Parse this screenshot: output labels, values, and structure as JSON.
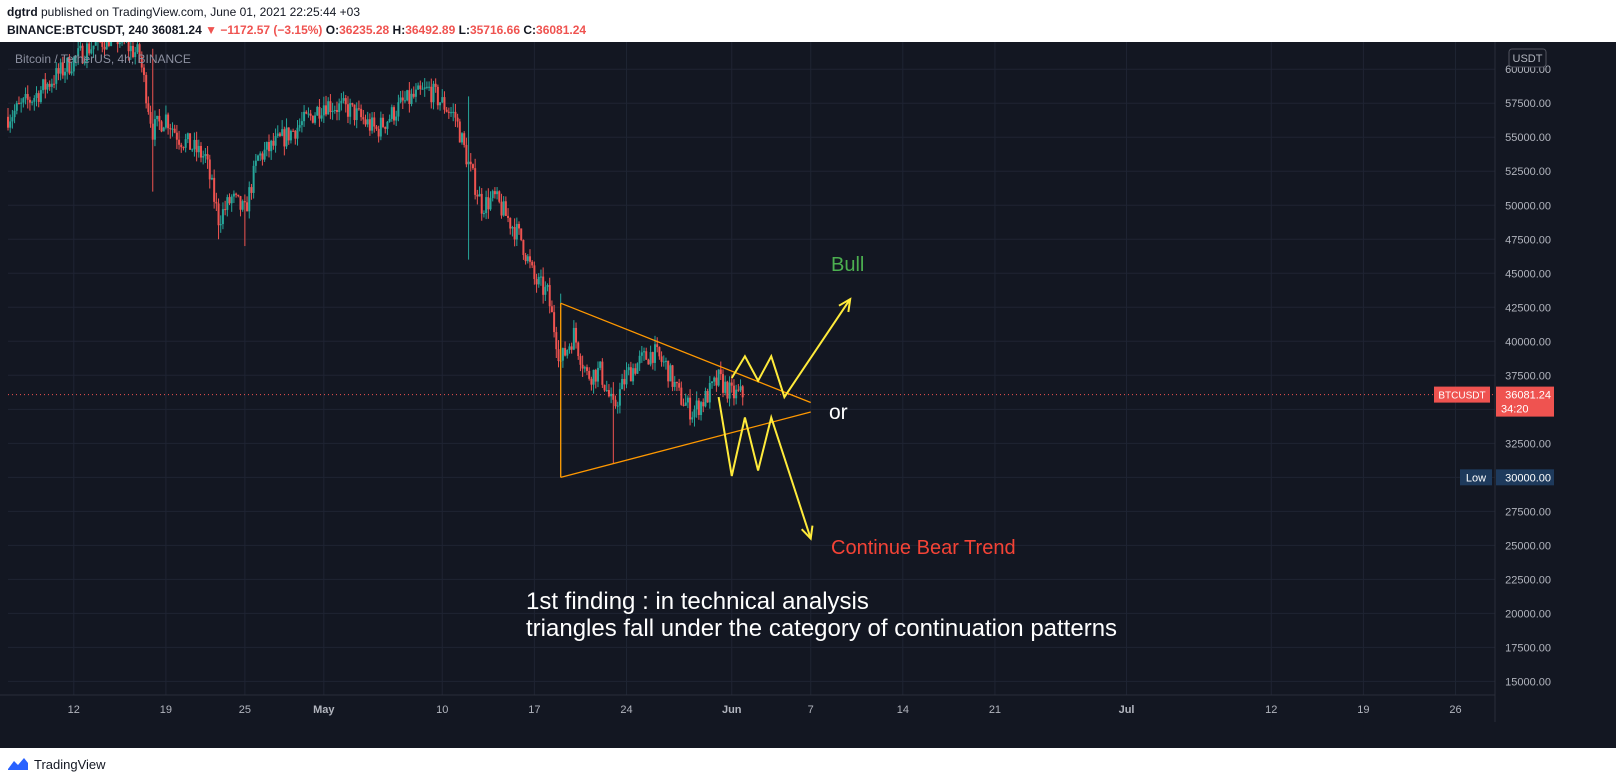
{
  "header": {
    "author": "dgtrd",
    "published_text": "published on TradingView.com, June 01, 2021 22:25:44 +03",
    "symbol": "BINANCE:BTCUSDT, 240",
    "last": "36081.24",
    "change": "−1172.57 (−3.15%)",
    "o_label": "O:",
    "o_value": "36235.28",
    "h_label": "H:",
    "h_value": "36492.89",
    "l_label": "L:",
    "l_value": "35716.66",
    "c_label": "C:",
    "c_value": "36081.24"
  },
  "footer": {
    "brand": "TradingView"
  },
  "chart_data": {
    "type": "candlestick",
    "title": "Bitcoin / TetherUS, 4h, BINANCE",
    "currency": "USDT",
    "ylim": [
      14000,
      62000
    ],
    "y_ticks": [
      15000,
      17500,
      20000,
      22500,
      25000,
      27500,
      30000,
      32500,
      35000,
      37500,
      40000,
      42500,
      45000,
      47500,
      50000,
      52500,
      55000,
      57500,
      60000
    ],
    "y_tick_labels": [
      "15000.00",
      "17500.00",
      "20000.00",
      "22500.00",
      "25000.00",
      "27500.00",
      "30000.00",
      "32500.00",
      "35000.00",
      "37500.00",
      "40000.00",
      "42500.00",
      "45000.00",
      "47500.00",
      "50000.00",
      "52500.00",
      "55000.00",
      "57500.00",
      "60000.00"
    ],
    "x_ticks": [
      {
        "label": "12",
        "date": "2021-04-12"
      },
      {
        "label": "19",
        "date": "2021-04-19"
      },
      {
        "label": "25",
        "date": "2021-04-25"
      },
      {
        "label": "May",
        "date": "2021-05-01",
        "bold": true
      },
      {
        "label": "10",
        "date": "2021-05-10"
      },
      {
        "label": "17",
        "date": "2021-05-17"
      },
      {
        "label": "24",
        "date": "2021-05-24"
      },
      {
        "label": "Jun",
        "date": "2021-06-01",
        "bold": true
      },
      {
        "label": "7",
        "date": "2021-06-07"
      },
      {
        "label": "14",
        "date": "2021-06-14"
      },
      {
        "label": "21",
        "date": "2021-06-21"
      },
      {
        "label": "Jul",
        "date": "2021-07-01",
        "bold": true
      },
      {
        "label": "12",
        "date": "2021-07-12"
      },
      {
        "label": "19",
        "date": "2021-07-19"
      },
      {
        "label": "26",
        "date": "2021-07-26"
      }
    ],
    "x_range": [
      "2021-04-07",
      "2021-07-29"
    ],
    "price_path": [
      {
        "date": "2021-04-07",
        "price": 56500
      },
      {
        "date": "2021-04-09",
        "price": 58000
      },
      {
        "date": "2021-04-11",
        "price": 59800
      },
      {
        "date": "2021-04-13",
        "price": 61500
      },
      {
        "date": "2021-04-15",
        "price": 62500
      },
      {
        "date": "2021-04-17",
        "price": 61000
      },
      {
        "date": "2021-04-18",
        "price": 55500
      },
      {
        "date": "2021-04-19",
        "price": 56500
      },
      {
        "date": "2021-04-20",
        "price": 55000
      },
      {
        "date": "2021-04-22",
        "price": 53500
      },
      {
        "date": "2021-04-23",
        "price": 49000
      },
      {
        "date": "2021-04-24",
        "price": 50500
      },
      {
        "date": "2021-04-25",
        "price": 49500
      },
      {
        "date": "2021-04-26",
        "price": 53500
      },
      {
        "date": "2021-04-28",
        "price": 55000
      },
      {
        "date": "2021-04-30",
        "price": 56500
      },
      {
        "date": "2021-05-01",
        "price": 57500
      },
      {
        "date": "2021-05-03",
        "price": 57000
      },
      {
        "date": "2021-05-05",
        "price": 55500
      },
      {
        "date": "2021-05-07",
        "price": 57500
      },
      {
        "date": "2021-05-09",
        "price": 58500
      },
      {
        "date": "2021-05-10",
        "price": 57500
      },
      {
        "date": "2021-05-11",
        "price": 56500
      },
      {
        "date": "2021-05-12",
        "price": 53000
      },
      {
        "date": "2021-05-13",
        "price": 50000
      },
      {
        "date": "2021-05-14",
        "price": 50500
      },
      {
        "date": "2021-05-15",
        "price": 49000
      },
      {
        "date": "2021-05-16",
        "price": 47500
      },
      {
        "date": "2021-05-17",
        "price": 44500
      },
      {
        "date": "2021-05-18",
        "price": 43500
      },
      {
        "date": "2021-05-19",
        "price": 38500
      },
      {
        "date": "2021-05-20",
        "price": 40500
      },
      {
        "date": "2021-05-21",
        "price": 37500
      },
      {
        "date": "2021-05-22",
        "price": 37800
      },
      {
        "date": "2021-05-23",
        "price": 35000
      },
      {
        "date": "2021-05-24",
        "price": 37500
      },
      {
        "date": "2021-05-25",
        "price": 38500
      },
      {
        "date": "2021-05-26",
        "price": 39200
      },
      {
        "date": "2021-05-27",
        "price": 38200
      },
      {
        "date": "2021-05-28",
        "price": 36000
      },
      {
        "date": "2021-05-29",
        "price": 34800
      },
      {
        "date": "2021-05-30",
        "price": 35800
      },
      {
        "date": "2021-05-31",
        "price": 37200
      },
      {
        "date": "2021-06-01",
        "price": 36081
      }
    ],
    "extremes": [
      {
        "date": "2021-04-18",
        "high": 61500,
        "low": 51000
      },
      {
        "date": "2021-04-23",
        "high": 50500,
        "low": 47500
      },
      {
        "date": "2021-04-25",
        "high": 50000,
        "low": 47000
      },
      {
        "date": "2021-05-12",
        "high": 58000,
        "low": 46000
      },
      {
        "date": "2021-05-19",
        "high": 43500,
        "low": 30000
      },
      {
        "date": "2021-05-23",
        "high": 37000,
        "low": 31000
      }
    ],
    "current_price": {
      "value": 36081.24,
      "label": "BTCUSDT",
      "value_label": "36081.24",
      "countdown": "34:20"
    },
    "low_marker": {
      "value": 30000,
      "label": "Low",
      "value_label": "30000.00"
    },
    "triangle": {
      "upper": [
        {
          "date": "2021-05-19",
          "price": 42800
        },
        {
          "date": "2021-06-07",
          "price": 35500
        }
      ],
      "lower": [
        {
          "date": "2021-05-19",
          "price": 30000
        },
        {
          "date": "2021-06-07",
          "price": 34800
        }
      ]
    },
    "projection_bull": [
      {
        "date": "2021-06-01",
        "price": 37300
      },
      {
        "date": "2021-06-02",
        "price": 38900
      },
      {
        "date": "2021-06-03",
        "price": 37100
      },
      {
        "date": "2021-06-04",
        "price": 38900
      },
      {
        "date": "2021-06-05",
        "price": 35900
      },
      {
        "date": "2021-06-10",
        "price": 43100
      }
    ],
    "projection_bear": [
      {
        "date": "2021-05-31",
        "price": 35900
      },
      {
        "date": "2021-06-01",
        "price": 30100
      },
      {
        "date": "2021-06-02",
        "price": 34400
      },
      {
        "date": "2021-06-03",
        "price": 30500
      },
      {
        "date": "2021-06-04",
        "price": 34400
      },
      {
        "date": "2021-06-07",
        "price": 25500
      }
    ],
    "annotations": {
      "bull": "Bull",
      "or": "or",
      "bear": "Continue Bear Trend",
      "finding_line1": "1st finding : in technical analysis",
      "finding_line2": "triangles fall under the category of continuation patterns"
    },
    "colors": {
      "background": "#131722",
      "up": "#26a69a",
      "down": "#ef5350",
      "triangle": "#ff9800",
      "projection": "#ffeb3b",
      "bull_text": "#4caf50",
      "bear_text": "#f44336",
      "grid": "#1f2433",
      "axis_text": "#b2b5be",
      "low_tag": "#1e3a5c"
    }
  }
}
